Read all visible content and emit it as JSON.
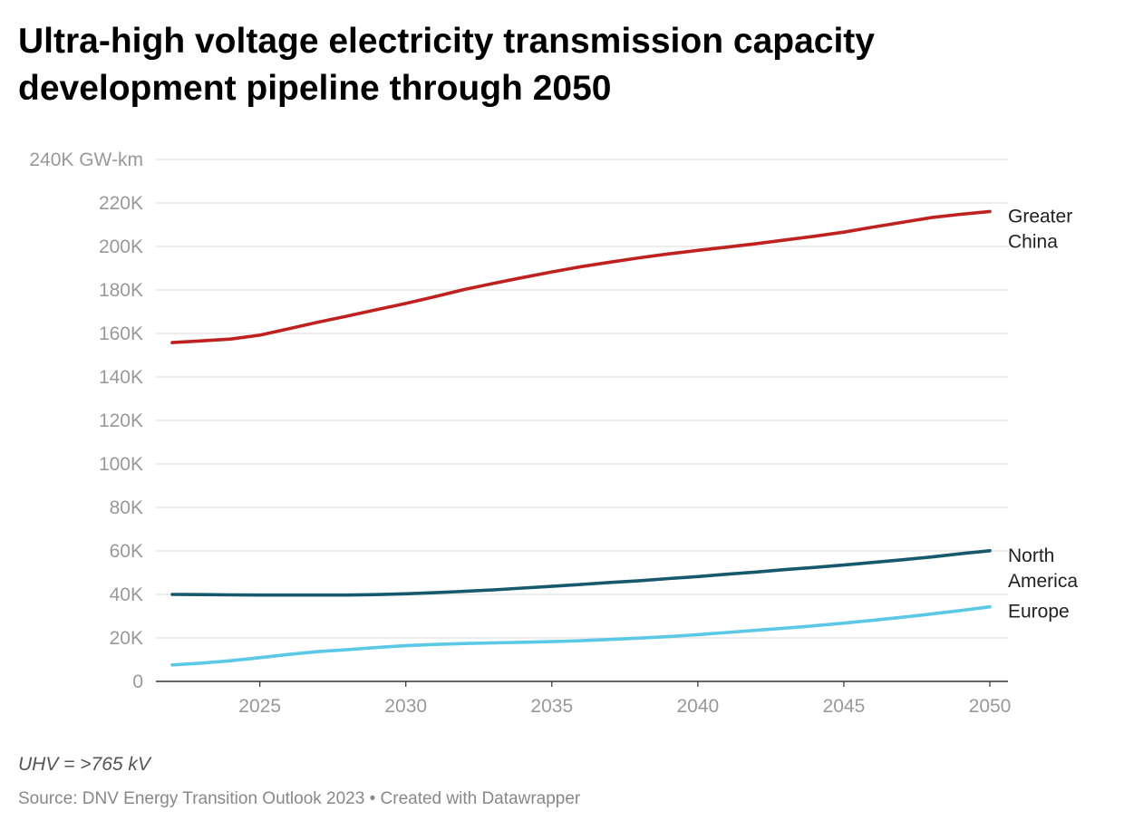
{
  "chart_data": {
    "type": "line",
    "title": "Ultra-high voltage electricity transmission capacity development pipeline through 2050",
    "ylabel": "",
    "xlabel": "",
    "y_unit": "GW-km",
    "ylim": [
      0,
      240000
    ],
    "xlim": [
      2022,
      2050
    ],
    "y_ticks": [
      {
        "value": 0,
        "label": "0"
      },
      {
        "value": 20000,
        "label": "20K"
      },
      {
        "value": 40000,
        "label": "40K"
      },
      {
        "value": 60000,
        "label": "60K"
      },
      {
        "value": 80000,
        "label": "80K"
      },
      {
        "value": 100000,
        "label": "100K"
      },
      {
        "value": 120000,
        "label": "120K"
      },
      {
        "value": 140000,
        "label": "140K"
      },
      {
        "value": 160000,
        "label": "160K"
      },
      {
        "value": 180000,
        "label": "180K"
      },
      {
        "value": 200000,
        "label": "200K"
      },
      {
        "value": 220000,
        "label": "220K"
      },
      {
        "value": 240000,
        "label": "240K GW-km"
      }
    ],
    "x_ticks": [
      {
        "value": 2025,
        "label": "2025"
      },
      {
        "value": 2030,
        "label": "2030"
      },
      {
        "value": 2035,
        "label": "2035"
      },
      {
        "value": 2040,
        "label": "2040"
      },
      {
        "value": 2045,
        "label": "2045"
      },
      {
        "value": 2050,
        "label": "2050"
      }
    ],
    "grid": true,
    "legend": "direct labels at line ends",
    "x": [
      2022,
      2023,
      2024,
      2025,
      2026,
      2027,
      2028,
      2029,
      2030,
      2031,
      2032,
      2033,
      2034,
      2035,
      2036,
      2037,
      2038,
      2039,
      2040,
      2041,
      2042,
      2043,
      2044,
      2045,
      2046,
      2047,
      2048,
      2049,
      2050
    ],
    "series": [
      {
        "name": "Greater China",
        "label_lines": [
          "Greater",
          "China"
        ],
        "color": "#c0211f",
        "values": [
          155800,
          156600,
          157400,
          159200,
          162200,
          165200,
          168000,
          170900,
          173800,
          176900,
          180200,
          183000,
          185700,
          188300,
          190700,
          192800,
          194800,
          196600,
          198200,
          199700,
          201300,
          203000,
          204700,
          206600,
          208900,
          211100,
          213300,
          214800,
          216100
        ]
      },
      {
        "name": "North America",
        "label_lines": [
          "North",
          "America"
        ],
        "color": "#17596c",
        "values": [
          40000,
          39900,
          39800,
          39700,
          39700,
          39700,
          39700,
          39900,
          40300,
          40800,
          41400,
          42100,
          42900,
          43700,
          44600,
          45500,
          46300,
          47300,
          48200,
          49300,
          50300,
          51400,
          52400,
          53500,
          54700,
          55900,
          57200,
          58700,
          60100
        ]
      },
      {
        "name": "Europe",
        "label_lines": [
          "Europe"
        ],
        "color": "#5bc8e6",
        "values": [
          7600,
          8400,
          9500,
          10900,
          12400,
          13700,
          14600,
          15600,
          16400,
          17000,
          17400,
          17700,
          18000,
          18300,
          18700,
          19300,
          19900,
          20600,
          21500,
          22500,
          23500,
          24500,
          25600,
          26800,
          28100,
          29500,
          31000,
          32600,
          34300
        ]
      }
    ]
  },
  "footer": {
    "note": "UHV = >765 kV",
    "source": "Source: DNV Energy Transition Outlook 2023 • Created with Datawrapper"
  }
}
